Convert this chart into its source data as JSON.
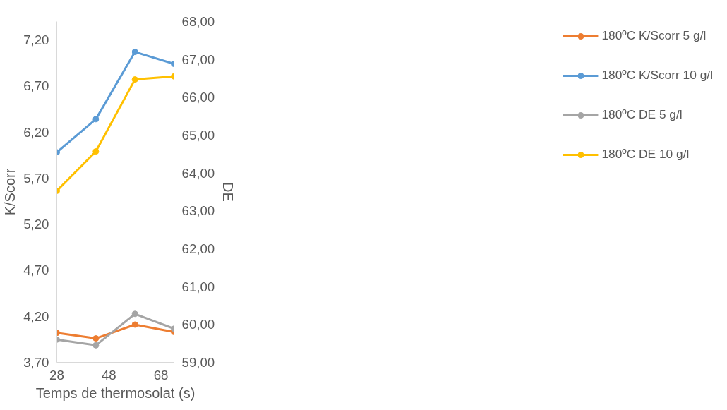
{
  "chart_data": {
    "type": "line",
    "xlabel": "Temps de thermosolat (s)",
    "ylabel": "K/Scorr",
    "y2label": "DE",
    "x": [
      28,
      43,
      58,
      73
    ],
    "series": [
      {
        "name": "180ºC K/Scorr 5 g/l",
        "color": "#ed7d31",
        "values": [
          4.02,
          3.96,
          4.11,
          4.03
        ]
      },
      {
        "name": "180ºC K/Scorr 10 g/l",
        "color": "#5b9bd5",
        "values": [
          5.98,
          6.34,
          7.07,
          6.94
        ]
      },
      {
        "name": "180ºC DE 5 g/l",
        "color": "#a5a5a5",
        "values": [
          59.6,
          59.45,
          60.28,
          59.89
        ],
        "axis": "y2"
      },
      {
        "name": "180ºC DE 10 g/l",
        "color": "#ffc000",
        "values": [
          63.53,
          64.57,
          66.47,
          66.55
        ],
        "axis": "y2"
      }
    ],
    "xlim": [
      28,
      73
    ],
    "xticks": [
      28,
      48,
      68
    ],
    "ylim": [
      3.7,
      7.4
    ],
    "yticks": [
      {
        "value": 3.7,
        "label": "3,70"
      },
      {
        "value": 4.2,
        "label": "4,20"
      },
      {
        "value": 4.7,
        "label": "4,70"
      },
      {
        "value": 5.2,
        "label": "5,20"
      },
      {
        "value": 5.7,
        "label": "5,70"
      },
      {
        "value": 6.2,
        "label": "6,20"
      },
      {
        "value": 6.7,
        "label": "6,70"
      },
      {
        "value": 7.2,
        "label": "7,20"
      }
    ],
    "y2lim": [
      59,
      68
    ],
    "y2ticks": [
      {
        "value": 59,
        "label": "59,00"
      },
      {
        "value": 60,
        "label": "60,00"
      },
      {
        "value": 61,
        "label": "61,00"
      },
      {
        "value": 62,
        "label": "62,00"
      },
      {
        "value": 63,
        "label": "63,00"
      },
      {
        "value": 64,
        "label": "64,00"
      },
      {
        "value": 65,
        "label": "65,00"
      },
      {
        "value": 66,
        "label": "66,00"
      },
      {
        "value": 67,
        "label": "67,00"
      },
      {
        "value": 68,
        "label": "68,00"
      }
    ],
    "grid": false,
    "legend": "right",
    "marker": "circle",
    "line_style": "solid"
  }
}
